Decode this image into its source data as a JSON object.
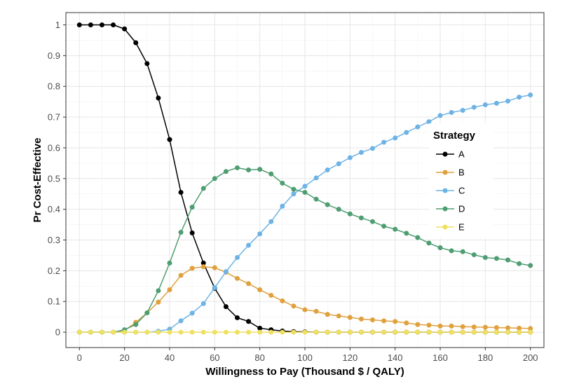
{
  "chart_data": {
    "type": "line",
    "xlabel": "Willingness to Pay (Thousand $ / QALY)",
    "ylabel": "Pr Cost-Effective",
    "xlim": [
      -6,
      206
    ],
    "ylim": [
      -0.05,
      1.04
    ],
    "x_ticks": [
      0,
      20,
      40,
      60,
      80,
      100,
      120,
      140,
      160,
      180,
      200
    ],
    "y_ticks": [
      0,
      0.1,
      0.2,
      0.3,
      0.4,
      0.5,
      0.6,
      0.7,
      0.8,
      0.9,
      1
    ],
    "y_tick_labels": [
      "0",
      "0.1",
      "0.2",
      "0.3",
      "0.4",
      "0.5",
      "0.6",
      "0.7",
      "0.8",
      "0.9",
      "1"
    ],
    "grid": true,
    "legend": {
      "title": "Strategy",
      "position": "right, inside plot"
    },
    "x": [
      0,
      5,
      10,
      15,
      20,
      25,
      30,
      35,
      40,
      45,
      50,
      55,
      60,
      65,
      70,
      75,
      80,
      85,
      90,
      95,
      100,
      105,
      110,
      115,
      120,
      125,
      130,
      135,
      140,
      145,
      150,
      155,
      160,
      165,
      170,
      175,
      180,
      185,
      190,
      195,
      200
    ],
    "series": [
      {
        "name": "A",
        "color": "#000000",
        "values": [
          1.0,
          1.0,
          1.0,
          1.0,
          0.987,
          0.942,
          0.874,
          0.762,
          0.627,
          0.455,
          0.323,
          0.225,
          0.143,
          0.083,
          0.047,
          0.035,
          0.013,
          0.008,
          0.004,
          0.002,
          0.001,
          0.0,
          0.0,
          0.0,
          0.0,
          0.0,
          0.0,
          0.0,
          0.0,
          0.0,
          0.0,
          0.0,
          0.0,
          0.0,
          0.0,
          0.0,
          0.0,
          0.0,
          0.0,
          0.0,
          0.0
        ]
      },
      {
        "name": "B",
        "color": "#e0a03c",
        "values": [
          0.0,
          0.0,
          0.0,
          0.0,
          0.005,
          0.032,
          0.063,
          0.098,
          0.138,
          0.185,
          0.208,
          0.213,
          0.21,
          0.195,
          0.175,
          0.158,
          0.138,
          0.12,
          0.102,
          0.085,
          0.073,
          0.068,
          0.058,
          0.053,
          0.048,
          0.043,
          0.04,
          0.037,
          0.035,
          0.03,
          0.025,
          0.023,
          0.02,
          0.02,
          0.018,
          0.017,
          0.016,
          0.015,
          0.014,
          0.013,
          0.012
        ]
      },
      {
        "name": "C",
        "color": "#6db3e5",
        "values": [
          0.0,
          0.0,
          0.0,
          0.0,
          0.0,
          0.0,
          0.0,
          0.003,
          0.01,
          0.037,
          0.062,
          0.093,
          0.145,
          0.197,
          0.243,
          0.283,
          0.32,
          0.36,
          0.41,
          0.45,
          0.475,
          0.502,
          0.528,
          0.548,
          0.568,
          0.585,
          0.598,
          0.618,
          0.632,
          0.65,
          0.668,
          0.685,
          0.705,
          0.715,
          0.722,
          0.732,
          0.74,
          0.745,
          0.752,
          0.765,
          0.772
        ]
      },
      {
        "name": "D",
        "color": "#4e9e72",
        "values": [
          0.0,
          0.0,
          0.0,
          0.0,
          0.008,
          0.025,
          0.063,
          0.135,
          0.225,
          0.325,
          0.407,
          0.468,
          0.5,
          0.523,
          0.535,
          0.528,
          0.53,
          0.515,
          0.485,
          0.465,
          0.455,
          0.433,
          0.415,
          0.4,
          0.385,
          0.372,
          0.36,
          0.345,
          0.335,
          0.322,
          0.308,
          0.29,
          0.275,
          0.265,
          0.262,
          0.252,
          0.243,
          0.24,
          0.235,
          0.223,
          0.217
        ]
      },
      {
        "name": "E",
        "color": "#f0e060",
        "values": [
          0.0,
          0.0,
          0.0,
          0.0,
          0.0,
          0.0,
          0.0,
          0.0,
          0.0,
          0.0,
          0.0,
          0.0,
          0.0,
          0.0,
          0.0,
          0.0,
          0.0,
          0.0,
          0.0,
          0.0,
          0.0,
          0.0,
          0.0,
          0.0,
          0.0,
          0.0,
          0.0,
          0.0,
          0.0,
          0.0,
          0.0,
          0.0,
          0.0,
          0.0,
          0.0,
          0.0,
          0.0,
          0.0,
          0.0,
          0.0,
          0.0
        ]
      }
    ]
  }
}
